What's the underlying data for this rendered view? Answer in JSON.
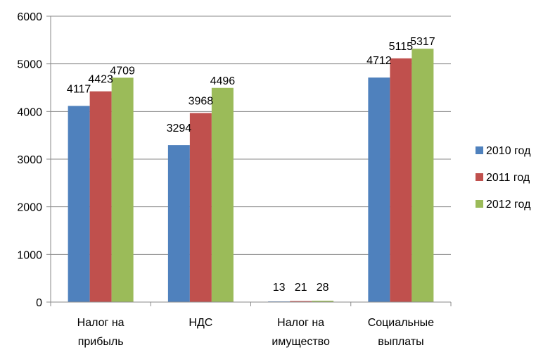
{
  "chart_data": {
    "type": "bar",
    "categories": [
      [
        "Налог на",
        "прибыль"
      ],
      [
        "НДС"
      ],
      [
        "Налог на",
        "имущество"
      ],
      [
        "Социальные",
        "выплаты"
      ]
    ],
    "series": [
      {
        "name": "2010 год",
        "color": "#4F81BD",
        "values": [
          4117,
          3294,
          13,
          4712
        ]
      },
      {
        "name": "2011 год",
        "color": "#C0504D",
        "values": [
          4423,
          3968,
          21,
          5115
        ]
      },
      {
        "name": "2012 год",
        "color": "#9BBB59",
        "values": [
          4709,
          4496,
          28,
          5317
        ]
      }
    ],
    "ylim": [
      0,
      6000
    ],
    "yticks": [
      0,
      1000,
      2000,
      3000,
      4000,
      5000,
      6000
    ],
    "grid": true,
    "legend_position": "right"
  }
}
